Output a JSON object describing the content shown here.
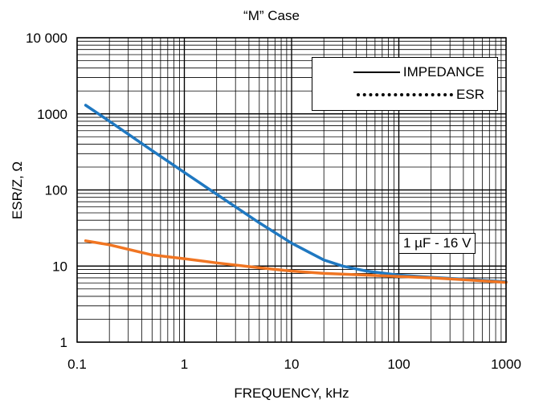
{
  "chart_data": {
    "type": "line",
    "title": "“M” Case",
    "xlabel": "FREQUENCY, kHz",
    "ylabel": "ESR/Z, Ω",
    "x_scale": "log",
    "y_scale": "log",
    "xlim": [
      0.1,
      1000
    ],
    "ylim": [
      1,
      10000
    ],
    "x_ticks": [
      "0.1",
      "1",
      "10",
      "100",
      "1000"
    ],
    "y_ticks": [
      "1",
      "10",
      "100",
      "1000",
      "10 000"
    ],
    "grid": true,
    "legend": {
      "placement": "top-right",
      "entries": [
        {
          "label": "IMPEDANCE",
          "style": "solid"
        },
        {
          "label": "ESR",
          "style": "dotted"
        }
      ]
    },
    "annotation": "1 µF - 16 V",
    "series": [
      {
        "color": "#1f78c1",
        "x": [
          0.12,
          0.2,
          0.5,
          1,
          2,
          5,
          10,
          20,
          30,
          50,
          100,
          200,
          500,
          1000
        ],
        "y": [
          1300,
          800,
          330,
          170,
          88,
          37,
          20,
          12,
          10,
          8.6,
          7.6,
          7.1,
          6.6,
          6.2
        ]
      },
      {
        "color": "#f07522",
        "x": [
          0.12,
          0.2,
          0.5,
          1,
          2,
          5,
          10,
          20,
          50,
          100,
          200,
          500,
          1000
        ],
        "y": [
          21.5,
          19,
          14,
          12.5,
          11,
          9.5,
          8.6,
          8,
          7.6,
          7.3,
          7.0,
          6.5,
          6.1
        ]
      }
    ]
  }
}
